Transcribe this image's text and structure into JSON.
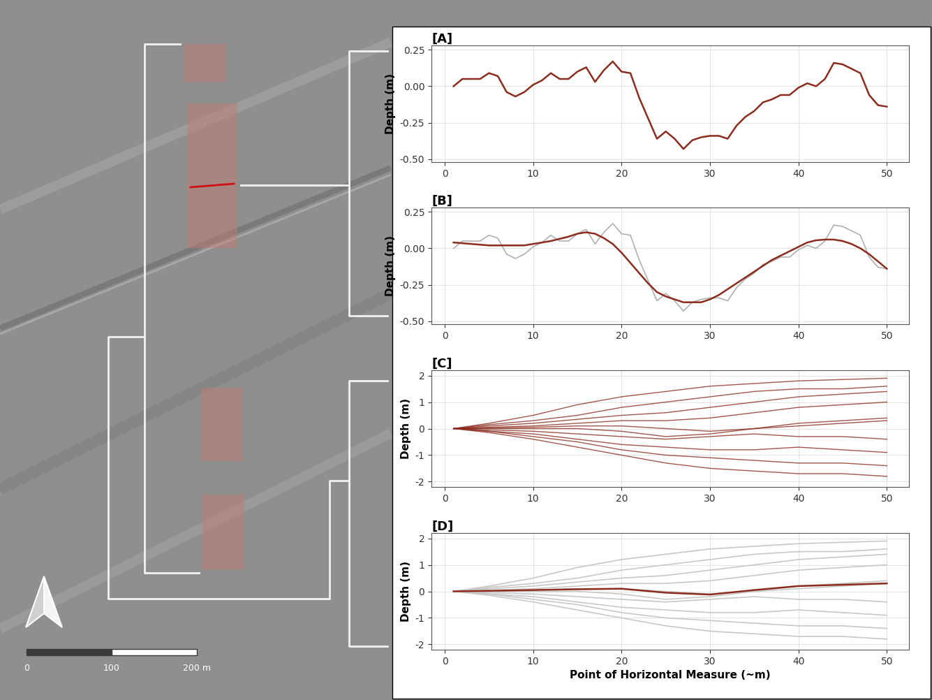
{
  "chart_data": [
    {
      "type": "line",
      "title": "[A]",
      "y_label": "Depth (m)",
      "x": [
        1,
        2,
        3,
        4,
        5,
        6,
        7,
        8,
        9,
        10,
        11,
        12,
        13,
        14,
        15,
        16,
        17,
        18,
        19,
        20,
        21,
        22,
        23,
        24,
        25,
        26,
        27,
        28,
        29,
        30,
        31,
        32,
        33,
        34,
        35,
        36,
        37,
        38,
        39,
        40,
        41,
        42,
        43,
        44,
        45,
        46,
        47,
        48,
        49,
        50
      ],
      "series": [
        {
          "color": "#8b2c1e",
          "values": [
            0.0,
            0.05,
            0.05,
            0.05,
            0.09,
            0.07,
            -0.04,
            -0.07,
            -0.04,
            0.01,
            0.04,
            0.09,
            0.05,
            0.05,
            0.1,
            0.13,
            0.03,
            0.11,
            0.17,
            0.1,
            0.09,
            -0.08,
            -0.22,
            -0.36,
            -0.31,
            -0.36,
            -0.43,
            -0.37,
            -0.35,
            -0.34,
            -0.34,
            -0.36,
            -0.27,
            -0.21,
            -0.17,
            -0.11,
            -0.09,
            -0.06,
            -0.06,
            -0.01,
            0.02,
            0.0,
            0.05,
            0.16,
            0.15,
            0.12,
            0.09,
            -0.06,
            -0.13,
            -0.14
          ]
        }
      ],
      "xlim": [
        -1.5,
        52.5
      ],
      "xticks": [
        0,
        10,
        20,
        30,
        40,
        50
      ],
      "ylim": [
        -0.52,
        0.28
      ],
      "yticks": [
        {
          "value": -0.5,
          "label": "-0.50"
        },
        -0.25,
        {
          "value": 0.0,
          "label": "0.00"
        },
        0.25
      ],
      "grid": true
    },
    {
      "type": "line",
      "title": "[B]",
      "y_label": "Depth (m)",
      "x": [
        1,
        2,
        3,
        4,
        5,
        6,
        7,
        8,
        9,
        10,
        11,
        12,
        13,
        14,
        15,
        16,
        17,
        18,
        19,
        20,
        21,
        22,
        23,
        24,
        25,
        26,
        27,
        28,
        29,
        30,
        31,
        32,
        33,
        34,
        35,
        36,
        37,
        38,
        39,
        40,
        41,
        42,
        43,
        44,
        45,
        46,
        47,
        48,
        49,
        50
      ],
      "series": [
        {
          "color": "#b0b0b0",
          "values": [
            0.0,
            0.05,
            0.05,
            0.05,
            0.09,
            0.07,
            -0.04,
            -0.07,
            -0.04,
            0.01,
            0.04,
            0.09,
            0.05,
            0.05,
            0.1,
            0.13,
            0.03,
            0.11,
            0.17,
            0.1,
            0.09,
            -0.08,
            -0.22,
            -0.36,
            -0.31,
            -0.36,
            -0.43,
            -0.37,
            -0.35,
            -0.34,
            -0.34,
            -0.36,
            -0.27,
            -0.21,
            -0.17,
            -0.11,
            -0.09,
            -0.06,
            -0.06,
            -0.01,
            0.02,
            0.0,
            0.05,
            0.16,
            0.15,
            0.12,
            0.09,
            -0.06,
            -0.13,
            -0.14
          ]
        },
        {
          "color": "#8b2c1e",
          "values": [
            0.04,
            0.035,
            0.03,
            0.025,
            0.02,
            0.02,
            0.02,
            0.02,
            0.02,
            0.03,
            0.04,
            0.05,
            0.065,
            0.08,
            0.1,
            0.11,
            0.1,
            0.07,
            0.03,
            -0.03,
            -0.1,
            -0.17,
            -0.24,
            -0.3,
            -0.33,
            -0.35,
            -0.37,
            -0.37,
            -0.37,
            -0.35,
            -0.32,
            -0.28,
            -0.24,
            -0.2,
            -0.16,
            -0.12,
            -0.08,
            -0.05,
            -0.02,
            0.01,
            0.04,
            0.055,
            0.06,
            0.06,
            0.05,
            0.03,
            0.0,
            -0.04,
            -0.09,
            -0.14
          ]
        }
      ],
      "xlim": [
        -1.5,
        52.5
      ],
      "xticks": [
        0,
        10,
        20,
        30,
        40,
        50
      ],
      "ylim": [
        -0.52,
        0.28
      ],
      "yticks": [
        {
          "value": -0.5,
          "label": "-0.50"
        },
        -0.25,
        {
          "value": 0.0,
          "label": "0.00"
        },
        0.25
      ],
      "grid": true
    },
    {
      "type": "line",
      "title": "[C]",
      "y_label": "Depth (m)",
      "x": [
        1,
        5,
        10,
        15,
        20,
        25,
        30,
        35,
        40,
        45,
        50
      ],
      "series": [
        {
          "color": "#8b2c1e",
          "values": [
            0,
            0.2,
            0.5,
            0.9,
            1.2,
            1.4,
            1.6,
            1.7,
            1.8,
            1.85,
            1.9
          ]
        },
        {
          "color": "#8b2c1e",
          "values": [
            0,
            0.15,
            0.3,
            0.5,
            0.8,
            1.0,
            1.2,
            1.4,
            1.5,
            1.5,
            1.6
          ]
        },
        {
          "color": "#8b2c1e",
          "values": [
            0,
            0.1,
            0.2,
            0.35,
            0.5,
            0.6,
            0.8,
            1.0,
            1.2,
            1.3,
            1.4
          ]
        },
        {
          "color": "#8b2c1e",
          "values": [
            0,
            0.05,
            0.1,
            0.2,
            0.3,
            0.3,
            0.4,
            0.6,
            0.8,
            0.9,
            1.0
          ]
        },
        {
          "color": "#8b2c1e",
          "values": [
            0,
            0.02,
            0.05,
            0.1,
            0.1,
            0.0,
            -0.1,
            0.0,
            0.2,
            0.3,
            0.4
          ]
        },
        {
          "color": "#8b2c1e",
          "values": [
            0,
            0.0,
            0.0,
            0.0,
            -0.1,
            -0.3,
            -0.2,
            0.0,
            0.1,
            0.2,
            0.3
          ]
        },
        {
          "color": "#8b2c1e",
          "values": [
            0,
            -0.05,
            -0.1,
            -0.2,
            -0.3,
            -0.4,
            -0.3,
            -0.2,
            -0.3,
            -0.3,
            -0.4
          ]
        },
        {
          "color": "#8b2c1e",
          "values": [
            0,
            -0.1,
            -0.2,
            -0.4,
            -0.6,
            -0.7,
            -0.8,
            -0.8,
            -0.7,
            -0.8,
            -0.9
          ]
        },
        {
          "color": "#8b2c1e",
          "values": [
            0,
            -0.1,
            -0.3,
            -0.5,
            -0.8,
            -1.0,
            -1.1,
            -1.2,
            -1.3,
            -1.3,
            -1.4
          ]
        },
        {
          "color": "#8b2c1e",
          "values": [
            0,
            -0.15,
            -0.4,
            -0.7,
            -1.0,
            -1.3,
            -1.5,
            -1.6,
            -1.7,
            -1.7,
            -1.8
          ]
        }
      ],
      "xlim": [
        -1.5,
        52.5
      ],
      "xticks": [
        0,
        10,
        20,
        30,
        40,
        50
      ],
      "ylim": [
        -2.2,
        2.2
      ],
      "yticks": [
        -2,
        -1,
        0,
        1,
        2
      ],
      "grid": true
    },
    {
      "type": "line",
      "title": "[D]",
      "y_label": "Depth (m)",
      "x_label": "Point of Horizontal Measure (~m)",
      "x": [
        1,
        5,
        10,
        15,
        20,
        25,
        30,
        35,
        40,
        45,
        50
      ],
      "series": [
        {
          "color": "#c8c8c8",
          "values": [
            0,
            0.2,
            0.5,
            0.9,
            1.2,
            1.4,
            1.6,
            1.7,
            1.8,
            1.85,
            1.9
          ]
        },
        {
          "color": "#c8c8c8",
          "values": [
            0,
            0.15,
            0.3,
            0.5,
            0.8,
            1.0,
            1.2,
            1.4,
            1.5,
            1.5,
            1.6
          ]
        },
        {
          "color": "#c8c8c8",
          "values": [
            0,
            0.1,
            0.2,
            0.35,
            0.5,
            0.6,
            0.8,
            1.0,
            1.2,
            1.3,
            1.4
          ]
        },
        {
          "color": "#c8c8c8",
          "values": [
            0,
            0.05,
            0.1,
            0.2,
            0.3,
            0.3,
            0.4,
            0.6,
            0.8,
            0.9,
            1.0
          ]
        },
        {
          "color": "#c8c8c8",
          "values": [
            0,
            0.02,
            0.05,
            0.1,
            0.1,
            0.0,
            -0.1,
            0.0,
            0.2,
            0.3,
            0.4
          ]
        },
        {
          "color": "#c8c8c8",
          "values": [
            0,
            0.0,
            0.0,
            0.0,
            -0.1,
            -0.3,
            -0.2,
            0.0,
            0.1,
            0.2,
            0.3
          ]
        },
        {
          "color": "#c8c8c8",
          "values": [
            0,
            -0.05,
            -0.1,
            -0.2,
            -0.3,
            -0.4,
            -0.3,
            -0.2,
            -0.3,
            -0.3,
            -0.4
          ]
        },
        {
          "color": "#c8c8c8",
          "values": [
            0,
            -0.1,
            -0.2,
            -0.4,
            -0.6,
            -0.7,
            -0.8,
            -0.8,
            -0.7,
            -0.8,
            -0.9
          ]
        },
        {
          "color": "#c8c8c8",
          "values": [
            0,
            -0.1,
            -0.3,
            -0.5,
            -0.8,
            -1.0,
            -1.1,
            -1.2,
            -1.3,
            -1.3,
            -1.4
          ]
        },
        {
          "color": "#c8c8c8",
          "values": [
            0,
            -0.15,
            -0.4,
            -0.7,
            -1.0,
            -1.3,
            -1.5,
            -1.6,
            -1.7,
            -1.7,
            -1.8
          ]
        },
        {
          "color": "#8b2c1e",
          "values": [
            0,
            0.02,
            0.05,
            0.08,
            0.1,
            -0.05,
            -0.12,
            0.05,
            0.2,
            0.25,
            0.3
          ]
        }
      ],
      "xlim": [
        -1.5,
        52.5
      ],
      "xticks": [
        0,
        10,
        20,
        30,
        40,
        50
      ],
      "ylim": [
        -2.2,
        2.2
      ],
      "yticks": [
        -2,
        -1,
        0,
        1,
        2
      ],
      "grid": true
    }
  ],
  "map": {
    "scale_bar": [
      0,
      100,
      {
        "value": 200,
        "label": "200 m"
      }
    ]
  }
}
